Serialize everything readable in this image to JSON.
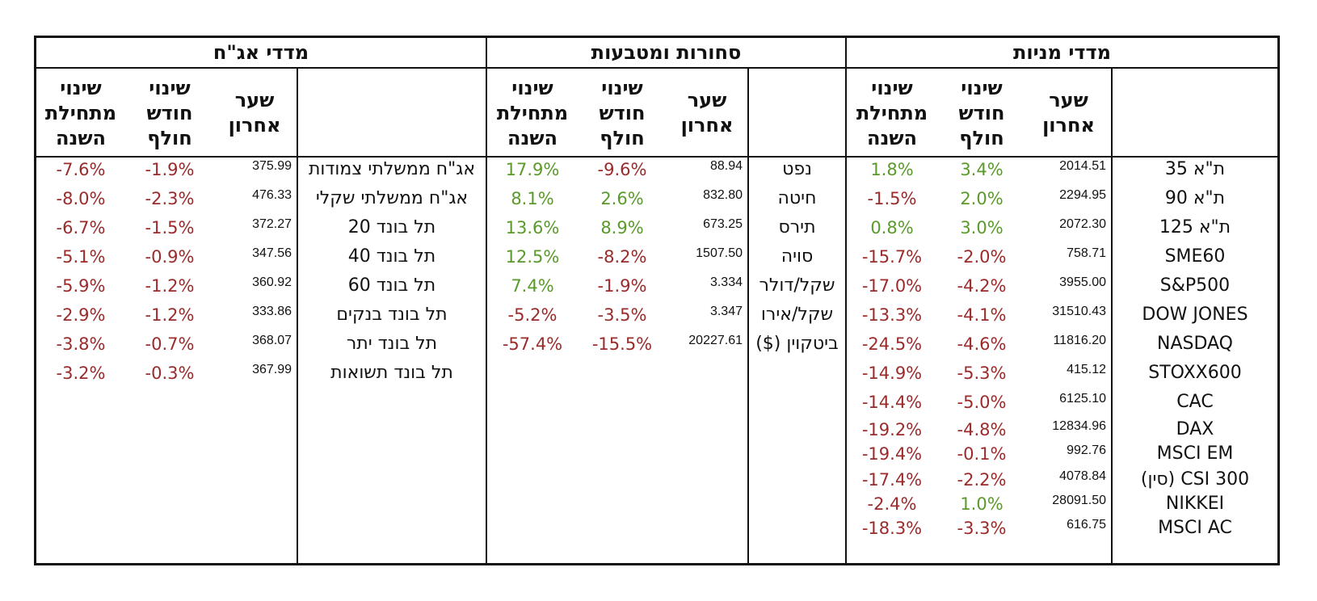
{
  "colors": {
    "positive": "#5a9a2a",
    "negative": "#9b2b2b"
  },
  "headers": {
    "last_rate": "שער\nאחרון",
    "month_change": "שינוי\nחודש\nחולף",
    "ytd_change": "שינוי\nמתחילת\nהשנה"
  },
  "sections": {
    "equity": {
      "title": "מדדי מניות",
      "rows": [
        {
          "name": "ת\"א 35",
          "price": "2014.51",
          "month": "3.4%",
          "ytd": "1.8%"
        },
        {
          "name": "ת\"א 90",
          "price": "2294.95",
          "month": "2.0%",
          "ytd": "-1.5%"
        },
        {
          "name": "ת\"א 125",
          "price": "2072.30",
          "month": "3.0%",
          "ytd": "0.8%"
        },
        {
          "name": "SME60",
          "price": "758.71",
          "month": "-2.0%",
          "ytd": "-15.7%"
        },
        {
          "name": "S&P500",
          "price": "3955.00",
          "month": "-4.2%",
          "ytd": "-17.0%"
        },
        {
          "name": "DOW JONES",
          "price": "31510.43",
          "month": "-4.1%",
          "ytd": "-13.3%"
        },
        {
          "name": "NASDAQ",
          "price": "11816.20",
          "month": "-4.6%",
          "ytd": "-24.5%"
        },
        {
          "name": "STOXX600",
          "price": "415.12",
          "month": "-5.3%",
          "ytd": "-14.9%"
        },
        {
          "name": "CAC",
          "price": "6125.10",
          "month": "-5.0%",
          "ytd": "-14.4%"
        },
        {
          "name": "DAX",
          "price": "12834.96",
          "month": "-4.8%",
          "ytd": "-19.2%"
        },
        {
          "name": "MSCI EM",
          "price": "992.76",
          "month": "-0.1%",
          "ytd": "-19.4%"
        },
        {
          "name": "CSI 300 (סין)",
          "price": "4078.84",
          "month": "-2.2%",
          "ytd": "-17.4%"
        },
        {
          "name": "NIKKEI",
          "price": "28091.50",
          "month": "1.0%",
          "ytd": "-2.4%"
        },
        {
          "name": "MSCI AC",
          "price": "616.75",
          "month": "-3.3%",
          "ytd": "-18.3%"
        }
      ]
    },
    "commodities": {
      "title": "סחורות ומטבעות",
      "rows": [
        {
          "name": "נפט",
          "price": "88.94",
          "month": "-9.6%",
          "ytd": "17.9%"
        },
        {
          "name": "חיטה",
          "price": "832.80",
          "month": "2.6%",
          "ytd": "8.1%"
        },
        {
          "name": "תירס",
          "price": "673.25",
          "month": "8.9%",
          "ytd": "13.6%"
        },
        {
          "name": "סויה",
          "price": "1507.50",
          "month": "-8.2%",
          "ytd": "12.5%"
        },
        {
          "name": "שקל/דולר",
          "price": "3.334",
          "month": "-1.9%",
          "ytd": "7.4%"
        },
        {
          "name": "שקל/אירו",
          "price": "3.347",
          "month": "-3.5%",
          "ytd": "-5.2%"
        },
        {
          "name": "ביטקוין ($)",
          "price": "20227.61",
          "month": "-15.5%",
          "ytd": "-57.4%"
        }
      ]
    },
    "bonds": {
      "title": "מדדי אג\"ח",
      "rows": [
        {
          "name": "אג\"ח ממשלתי צמודות",
          "price": "375.99",
          "month": "-1.9%",
          "ytd": "-7.6%"
        },
        {
          "name": "אג\"ח ממשלתי שקלי",
          "price": "476.33",
          "month": "-2.3%",
          "ytd": "-8.0%"
        },
        {
          "name": "תל בונד 20",
          "price": "372.27",
          "month": "-1.5%",
          "ytd": "-6.7%"
        },
        {
          "name": "תל בונד 40",
          "price": "347.56",
          "month": "-0.9%",
          "ytd": "-5.1%"
        },
        {
          "name": "תל בונד 60",
          "price": "360.92",
          "month": "-1.2%",
          "ytd": "-5.9%"
        },
        {
          "name": "תל בונד בנקים",
          "price": "333.86",
          "month": "-1.2%",
          "ytd": "-2.9%"
        },
        {
          "name": "תל בונד יתר",
          "price": "368.07",
          "month": "-0.7%",
          "ytd": "-3.8%"
        },
        {
          "name": "תל בונד תשואות",
          "price": "367.99",
          "month": "-0.3%",
          "ytd": "-3.2%"
        }
      ]
    }
  }
}
